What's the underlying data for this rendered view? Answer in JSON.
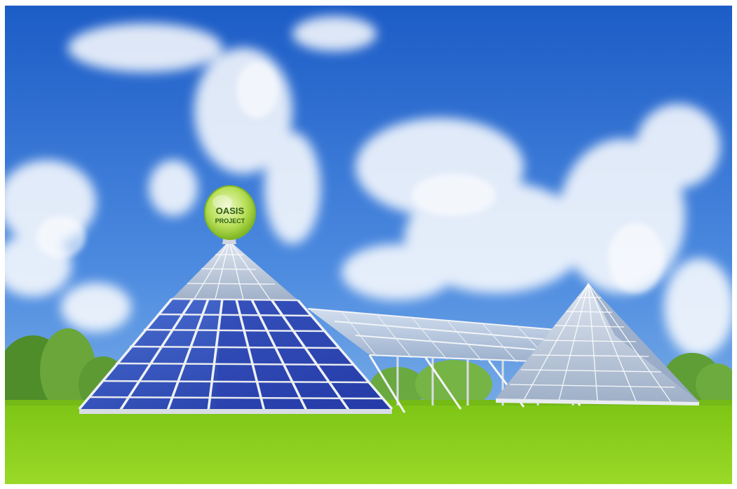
{
  "logo": {
    "line1": "OASIS",
    "line2": "PROJECT"
  },
  "colors": {
    "sky_top": "#1f62c9",
    "sky_bottom": "#6fa6e2",
    "grass": "#8ed11a",
    "panel": "#2e49b8",
    "frame_metal": "#e6e9ef",
    "logo_green": "#9fcf3c"
  }
}
